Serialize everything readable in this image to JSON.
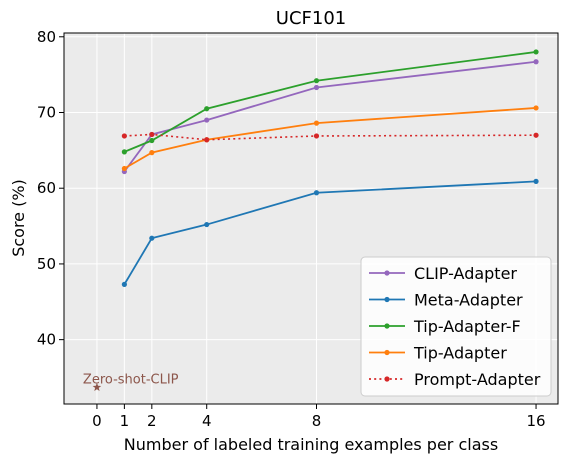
{
  "chart_data": {
    "type": "line",
    "title": "UCF101",
    "xlabel": "Number of labeled training examples per class",
    "ylabel": "Score (%)",
    "xlim": [
      -1.2,
      16.8
    ],
    "ylim": [
      31.5,
      80.5
    ],
    "x_ticks": [
      0,
      1,
      2,
      4,
      8,
      16
    ],
    "y_ticks": [
      40,
      50,
      60,
      70,
      80
    ],
    "grid": true,
    "legend_position": "bottom-right",
    "series": [
      {
        "name": "CLIP-Adapter",
        "color": "#9467bd",
        "style": "solid",
        "x": [
          1,
          2,
          4,
          8,
          16
        ],
        "values": [
          62.2,
          67.1,
          69.0,
          73.3,
          76.7
        ]
      },
      {
        "name": "Meta-Adapter",
        "color": "#1f77b4",
        "style": "solid",
        "x": [
          1,
          2,
          4,
          8,
          16
        ],
        "values": [
          47.3,
          53.4,
          55.2,
          59.4,
          60.9
        ]
      },
      {
        "name": "Tip-Adapter-F",
        "color": "#2ca02c",
        "style": "solid",
        "x": [
          1,
          2,
          4,
          8,
          16
        ],
        "values": [
          64.8,
          66.3,
          70.5,
          74.2,
          78.0
        ]
      },
      {
        "name": "Tip-Adapter",
        "color": "#ff7f0e",
        "style": "solid",
        "x": [
          1,
          2,
          4,
          8,
          16
        ],
        "values": [
          62.6,
          64.7,
          66.4,
          68.6,
          70.6
        ]
      },
      {
        "name": "Prompt-Adapter",
        "color": "#d62728",
        "style": "dotted",
        "x": [
          1,
          2,
          4,
          8,
          16
        ],
        "values": [
          66.9,
          67.1,
          66.4,
          66.9,
          67.0
        ]
      }
    ],
    "annotations": [
      {
        "text": "Zero-shot-CLIP",
        "x": 0,
        "y": 33.7,
        "color": "#8c564b",
        "marker": "star"
      }
    ]
  }
}
